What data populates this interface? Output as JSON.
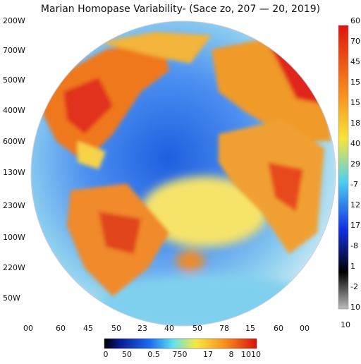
{
  "title": "Marian Homopase Variability- (Sace zo, 207 — 20, 2019)",
  "left_labels": [
    "200W",
    "700W",
    "500W",
    "400W",
    "600W",
    "130W",
    "230W",
    "100W",
    "220W",
    "50W"
  ],
  "bottom_labels": [
    "00",
    "60",
    "45",
    "50",
    "23",
    "40",
    "50",
    "78",
    "15",
    "60",
    "00",
    "10"
  ],
  "right_colorbar_labels": [
    "60",
    "70",
    "45",
    "15",
    "15",
    "18",
    "40",
    "29",
    "-7",
    "12",
    "17",
    "-8",
    "1",
    "-2",
    "10"
  ],
  "bottom_colorbar_labels": [
    "0",
    "50",
    "0.5",
    "750",
    "17",
    "8",
    "1010"
  ]
}
